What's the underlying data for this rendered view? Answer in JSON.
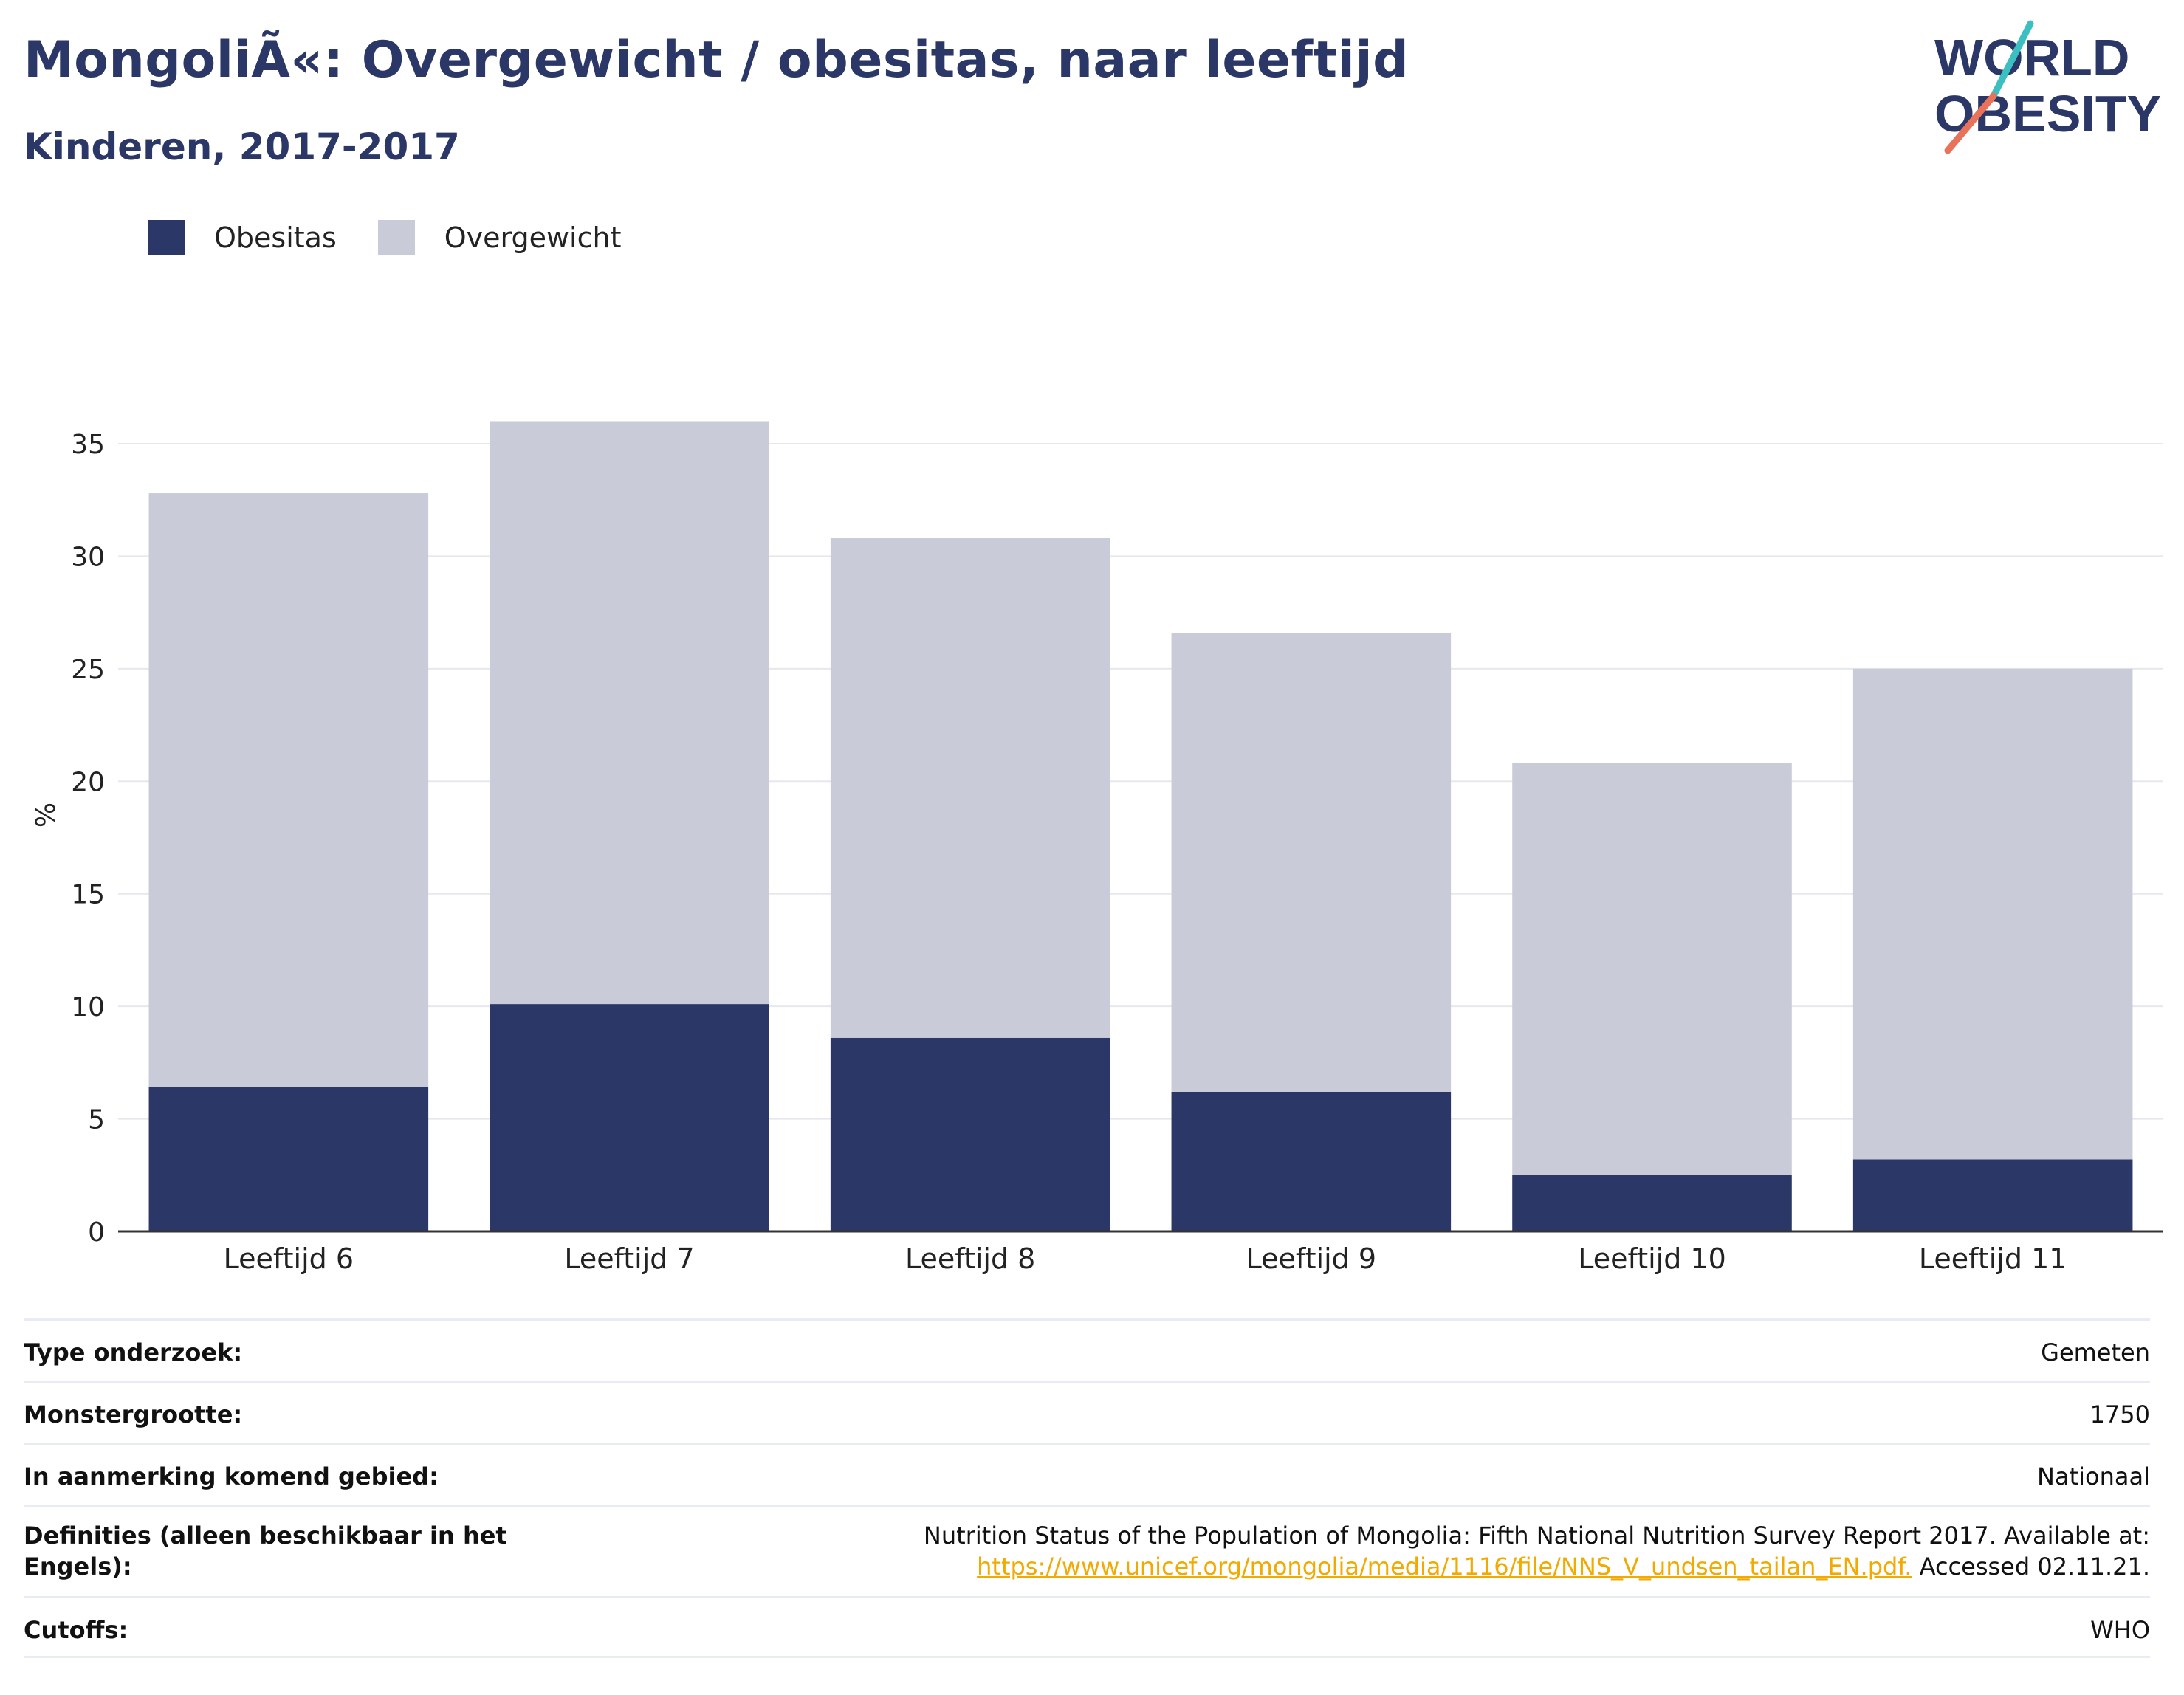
{
  "header": {
    "title": "MongoliÃ«: Overgewicht / obesitas, naar leeftijd",
    "subtitle": "Kinderen, 2017-2017"
  },
  "logo": {
    "line1": "WORLD",
    "line2": "OBESITY",
    "colors": {
      "text": "#2b3766",
      "slash_top": "#3bbfc0",
      "slash_bottom": "#e8735a"
    }
  },
  "colors": {
    "obesitas": "#2b3766",
    "overgewicht": "#c9ccd8",
    "grid": "#e6e8ee",
    "axis": "#333333"
  },
  "chart_data": {
    "type": "bar",
    "stacked": true,
    "categories": [
      "Leeftijd 6",
      "Leeftijd 7",
      "Leeftijd 8",
      "Leeftijd 9",
      "Leeftijd 10",
      "Leeftijd 11"
    ],
    "series": [
      {
        "name": "Obesitas",
        "color": "#2b3766",
        "values": [
          6.4,
          10.1,
          8.6,
          6.2,
          2.5,
          3.2
        ]
      },
      {
        "name": "Overgewicht",
        "color": "#c9ccd8",
        "values": [
          26.4,
          25.9,
          22.2,
          20.4,
          18.3,
          21.8
        ]
      }
    ],
    "title": "MongoliÃ«: Overgewicht / obesitas, naar leeftijd",
    "subtitle": "Kinderen, 2017-2017",
    "xlabel": "",
    "ylabel": "%",
    "ylim": [
      0,
      37
    ],
    "yticks": [
      0,
      5,
      10,
      15,
      20,
      25,
      30,
      35
    ],
    "grid": true,
    "legend_position": "top-left"
  },
  "info": [
    {
      "label": "Type onderzoek:",
      "value": "Gemeten"
    },
    {
      "label": "Monstergrootte:",
      "value": "1750"
    },
    {
      "label": "In aanmerking komend gebied:",
      "value": "Nationaal"
    },
    {
      "label": "Definities (alleen beschikbaar in het Engels):",
      "value_prefix": "Nutrition Status of the Population of Mongolia: Fifth National Nutrition Survey Report 2017. Available at:",
      "link": "https://www.unicef.org/mongolia/media/1116/file/NNS_V_undsen_tailan_EN.pdf.",
      "value_suffix": "Accessed 02.11.21."
    },
    {
      "label": "Cutoffs:",
      "value": "WHO"
    }
  ]
}
